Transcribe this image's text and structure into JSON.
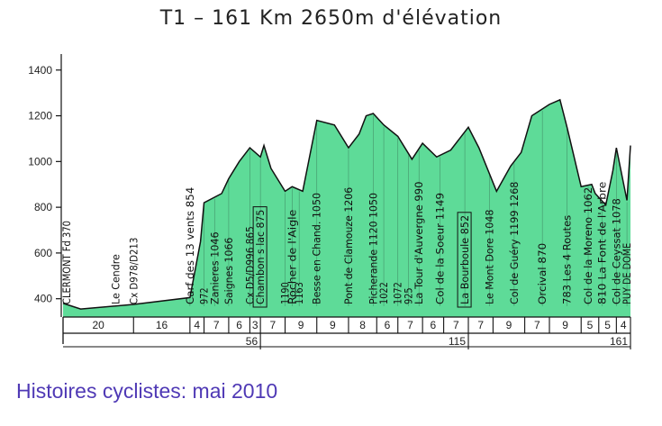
{
  "chart_data": {
    "type": "area",
    "title": "T1  –  161  Km  2650m  d'élévation",
    "y_ticks": [
      "400",
      "600",
      "800",
      "1000",
      "1200",
      "1400"
    ],
    "ylim": [
      320,
      1470
    ],
    "xlim": [
      0,
      161
    ],
    "grid": false,
    "fill_color": "#5edb98",
    "line_color": "#111111",
    "profile": {
      "x": [
        0,
        5,
        20,
        36,
        39,
        40,
        45,
        47,
        50,
        53,
        56,
        57,
        59,
        63,
        65,
        68,
        72,
        77,
        81,
        84,
        86,
        88,
        91,
        95,
        99,
        102,
        106,
        110,
        115,
        118,
        123,
        127,
        130,
        133,
        138,
        141,
        143,
        147,
        150,
        151,
        154,
        156,
        157,
        160,
        161
      ],
      "y": [
        380,
        355,
        375,
        405,
        650,
        820,
        860,
        925,
        1000,
        1060,
        1020,
        1070,
        970,
        870,
        890,
        870,
        1180,
        1160,
        1060,
        1120,
        1200,
        1210,
        1160,
        1110,
        1010,
        1080,
        1020,
        1050,
        1150,
        1060,
        870,
        980,
        1040,
        1200,
        1250,
        1270,
        1150,
        890,
        900,
        860,
        810,
        960,
        1060,
        830,
        1070
      ]
    },
    "annotations": [
      {
        "x": 1,
        "label": "CLERMONT Fd 370",
        "boxed": false
      },
      {
        "x": 15,
        "label": "Le Cendre",
        "boxed": false
      },
      {
        "x": 20,
        "label": "Cx D978/D213",
        "boxed": false
      },
      {
        "x": 36,
        "label": "Carf des 13 vents 854",
        "boxed": false
      },
      {
        "x": 40,
        "label": "972",
        "boxed": false
      },
      {
        "x": 43,
        "label": "Zanieres 1046",
        "boxed": false
      },
      {
        "x": 47,
        "label": "Saignes 1066",
        "boxed": false
      },
      {
        "x": 53,
        "label": "Cx D5/D996 865",
        "boxed": false
      },
      {
        "x": 56,
        "label": "Chambon s lac 875",
        "boxed": true
      },
      {
        "x": 63,
        "label": "1190",
        "boxed": false
      },
      {
        "x": 65,
        "label": "Rocher de l'Aigle",
        "boxed": false
      },
      {
        "x": 67,
        "label": "1163",
        "boxed": false
      },
      {
        "x": 72,
        "label": "Besse en Chand. 1050",
        "boxed": false
      },
      {
        "x": 81,
        "label": "Pont de Clamouze 1206",
        "boxed": false
      },
      {
        "x": 88,
        "label": "Picherande 1120 1050",
        "boxed": false
      },
      {
        "x": 91,
        "label": "1022",
        "boxed": false
      },
      {
        "x": 95,
        "label": "1072",
        "boxed": false
      },
      {
        "x": 98,
        "label": "925",
        "boxed": false
      },
      {
        "x": 101,
        "label": "La Tour d'Auvergne 990",
        "boxed": false
      },
      {
        "x": 107,
        "label": "Col de la Soeur 1149",
        "boxed": false
      },
      {
        "x": 114,
        "label": "La Bourboule 852",
        "boxed": true
      },
      {
        "x": 121,
        "label": "Le Mont Dore 1048",
        "boxed": false
      },
      {
        "x": 128,
        "label": "Col de Guéry 1199 1268",
        "boxed": false
      },
      {
        "x": 136,
        "label": "Orcival 870",
        "boxed": false
      },
      {
        "x": 143,
        "label": "783 Les 4 Routes",
        "boxed": false
      },
      {
        "x": 149,
        "label": "Col de la Moreno 1062",
        "boxed": false
      },
      {
        "x": 153,
        "label": "810 La Font de l'Arbre",
        "boxed": false
      },
      {
        "x": 157,
        "label": "Col de Ceyssat 1078",
        "boxed": false
      },
      {
        "x": 160,
        "label": "PUY DE DOME",
        "boxed": false
      }
    ],
    "segments": [
      {
        "x0": 0,
        "x1": 20,
        "label": "20"
      },
      {
        "x0": 20,
        "x1": 36,
        "label": "16"
      },
      {
        "x0": 36,
        "x1": 40,
        "label": "4"
      },
      {
        "x0": 40,
        "x1": 47,
        "label": "7"
      },
      {
        "x0": 47,
        "x1": 53,
        "label": "6"
      },
      {
        "x0": 53,
        "x1": 56,
        "label": "3"
      },
      {
        "x0": 56,
        "x1": 63,
        "label": "7"
      },
      {
        "x0": 63,
        "x1": 72,
        "label": "9"
      },
      {
        "x0": 72,
        "x1": 81,
        "label": "9"
      },
      {
        "x0": 81,
        "x1": 89,
        "label": "8"
      },
      {
        "x0": 89,
        "x1": 95,
        "label": "6"
      },
      {
        "x0": 95,
        "x1": 102,
        "label": "7"
      },
      {
        "x0": 102,
        "x1": 108,
        "label": "6"
      },
      {
        "x0": 108,
        "x1": 115,
        "label": "7"
      },
      {
        "x0": 115,
        "x1": 122,
        "label": "7"
      },
      {
        "x0": 122,
        "x1": 131,
        "label": "9"
      },
      {
        "x0": 131,
        "x1": 138,
        "label": "7"
      },
      {
        "x0": 138,
        "x1": 147,
        "label": "9"
      },
      {
        "x0": 147,
        "x1": 152,
        "label": "5"
      },
      {
        "x0": 152,
        "x1": 157,
        "label": "5"
      },
      {
        "x0": 157,
        "x1": 161,
        "label": "4"
      }
    ],
    "cumulative": [
      {
        "x": 56,
        "label": "56"
      },
      {
        "x": 115,
        "label": "115"
      },
      {
        "x": 161,
        "label": "161"
      }
    ]
  },
  "caption": "Histoires cyclistes: mai 2010"
}
